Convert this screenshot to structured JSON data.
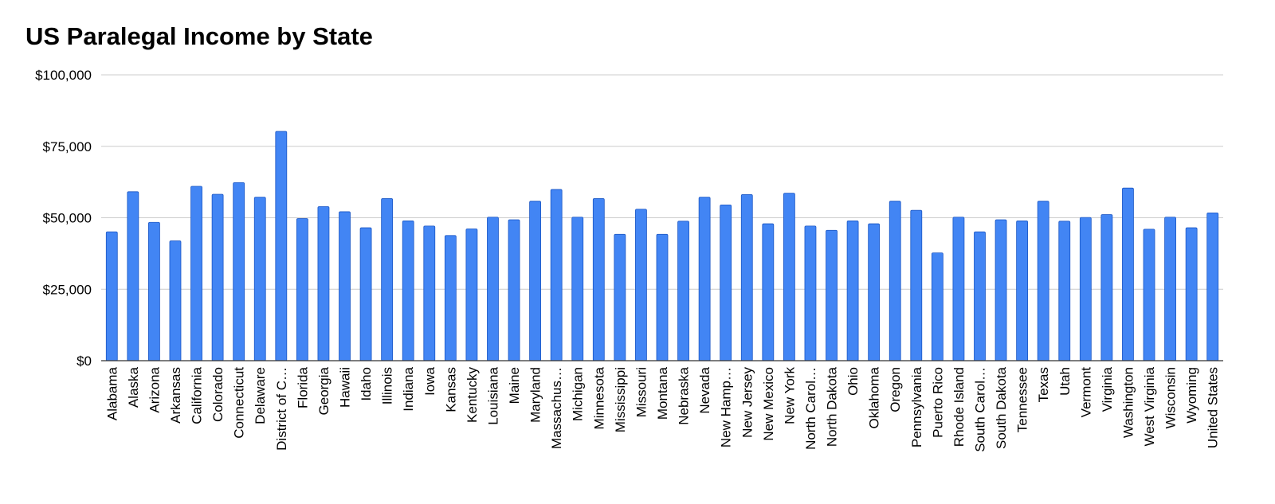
{
  "chart_data": {
    "type": "bar",
    "title": "US Paralegal Income by State",
    "xlabel": "",
    "ylabel": "",
    "ylim": [
      0,
      100000
    ],
    "yticks": [
      0,
      25000,
      50000,
      75000,
      100000
    ],
    "ytick_labels": [
      "$0",
      "$25,000",
      "$50,000",
      "$75,000",
      "$100,000"
    ],
    "grid": true,
    "legend": "none",
    "bar_color": "#4285F4",
    "bar_border_color": "#1A56C4",
    "grid_color": "#CCCCCC",
    "categories": [
      "Alabama",
      "Alaska",
      "Arizona",
      "Arkansas",
      "California",
      "Colorado",
      "Connecticut",
      "Delaware",
      "District of C…",
      "Florida",
      "Georgia",
      "Hawaii",
      "Idaho",
      "Illinois",
      "Indiana",
      "Iowa",
      "Kansas",
      "Kentucky",
      "Louisiana",
      "Maine",
      "Maryland",
      "Massachus…",
      "Michigan",
      "Minnesota",
      "Mississippi",
      "Missouri",
      "Montana",
      "Nebraska",
      "Nevada",
      "New Hamp…",
      "New Jersey",
      "New Mexico",
      "New York",
      "North Carol…",
      "North Dakota",
      "Ohio",
      "Oklahoma",
      "Oregon",
      "Pennsylvania",
      "Puerto Rico",
      "Rhode Island",
      "South Carol…",
      "South Dakota",
      "Tennessee",
      "Texas",
      "Utah",
      "Vermont",
      "Virginia",
      "Washington",
      "West Virginia",
      "Wisconsin",
      "Wyoming",
      "United States"
    ],
    "values": [
      45100,
      59100,
      48400,
      41900,
      61000,
      58200,
      62300,
      57200,
      80200,
      49700,
      53900,
      52100,
      46500,
      56700,
      48900,
      47100,
      43800,
      46100,
      50200,
      49300,
      55800,
      59900,
      50200,
      56700,
      44200,
      53000,
      44200,
      48800,
      57200,
      54500,
      58100,
      47900,
      58600,
      47100,
      45600,
      48900,
      47900,
      55800,
      52600,
      37700,
      50200,
      45100,
      49300,
      48900,
      55800,
      48800,
      50100,
      51100,
      60400,
      46000,
      50200,
      46500,
      51700
    ]
  }
}
